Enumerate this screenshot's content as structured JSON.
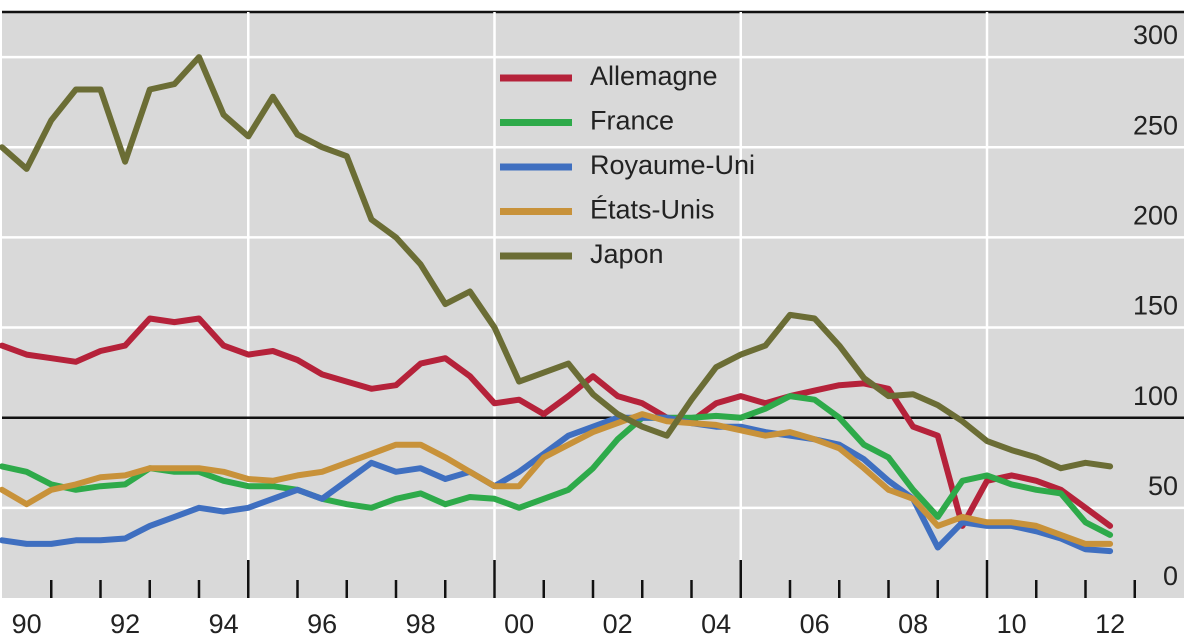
{
  "chart_data": {
    "type": "line",
    "x": [
      1990.0,
      1990.5,
      1991.0,
      1991.5,
      1992.0,
      1992.5,
      1993.0,
      1993.5,
      1994.0,
      1994.5,
      1995.0,
      1995.5,
      1996.0,
      1996.5,
      1997.0,
      1997.5,
      1998.0,
      1998.5,
      1999.0,
      1999.5,
      2000.0,
      2000.5,
      2001.0,
      2001.5,
      2002.0,
      2002.5,
      2003.0,
      2003.5,
      2004.0,
      2004.5,
      2005.0,
      2005.5,
      2006.0,
      2006.5,
      2007.0,
      2007.5,
      2008.0,
      2008.5,
      2009.0,
      2009.5,
      2010.0,
      2010.5,
      2011.0,
      2011.5,
      2012.0,
      2012.5
    ],
    "series": [
      {
        "name": "Allemagne",
        "color": "#b5223a",
        "values": [
          140,
          135,
          133,
          131,
          137,
          140,
          155,
          153,
          155,
          140,
          135,
          137,
          132,
          124,
          120,
          116,
          118,
          130,
          133,
          123,
          108,
          110,
          102,
          112,
          123,
          112,
          108,
          100,
          98,
          108,
          112,
          108,
          112,
          115,
          118,
          119,
          116,
          95,
          90,
          40,
          65,
          68,
          65,
          60,
          50,
          40
        ]
      },
      {
        "name": "France",
        "color": "#2eaa4a",
        "values": [
          73,
          70,
          63,
          60,
          62,
          63,
          72,
          70,
          70,
          65,
          62,
          62,
          60,
          55,
          52,
          50,
          55,
          58,
          52,
          56,
          55,
          50,
          55,
          60,
          72,
          88,
          100,
          100,
          100,
          101,
          100,
          105,
          112,
          110,
          100,
          85,
          78,
          60,
          45,
          65,
          68,
          63,
          60,
          58,
          42,
          35
        ]
      },
      {
        "name": "Royaume-Uni",
        "color": "#3f6fc0",
        "values": [
          32,
          30,
          30,
          32,
          32,
          33,
          40,
          45,
          50,
          48,
          50,
          55,
          60,
          55,
          65,
          75,
          70,
          72,
          66,
          70,
          62,
          70,
          80,
          90,
          95,
          100,
          100,
          100,
          97,
          95,
          95,
          92,
          90,
          88,
          85,
          77,
          65,
          55,
          28,
          42,
          40,
          40,
          37,
          33,
          27,
          26
        ]
      },
      {
        "name": "États-Unis",
        "color": "#c8923a",
        "values": [
          60,
          52,
          60,
          63,
          67,
          68,
          72,
          72,
          72,
          70,
          66,
          65,
          68,
          70,
          75,
          80,
          85,
          85,
          78,
          70,
          62,
          62,
          78,
          85,
          92,
          97,
          102,
          98,
          97,
          96,
          93,
          90,
          92,
          88,
          83,
          72,
          60,
          55,
          40,
          45,
          42,
          42,
          40,
          35,
          30,
          30
        ]
      },
      {
        "name": "Japon",
        "color": "#6b6d35",
        "values": [
          250,
          238,
          265,
          282,
          282,
          242,
          282,
          285,
          300,
          268,
          256,
          278,
          257,
          250,
          245,
          210,
          200,
          185,
          163,
          170,
          150,
          120,
          125,
          130,
          113,
          102,
          95,
          90,
          110,
          128,
          135,
          140,
          157,
          155,
          140,
          122,
          112,
          113,
          107,
          98,
          87,
          82,
          78,
          72,
          75,
          73
        ]
      }
    ],
    "xlim": [
      1990,
      2014
    ],
    "ylim": [
      0,
      325
    ],
    "yticks": [
      0,
      50,
      100,
      150,
      200,
      250,
      300
    ],
    "reference_line": 100,
    "major_xticks": [
      1995,
      2000,
      2005,
      2010
    ],
    "minor_xticks": [
      1991,
      1992,
      1993,
      1994,
      1996,
      1997,
      1998,
      1999,
      2001,
      2002,
      2003,
      2004,
      2006,
      2007,
      2008,
      2009,
      2011,
      2012,
      2013
    ],
    "xtick_labels": [
      {
        "value": 1990.5,
        "label": "90"
      },
      {
        "value": 1992.5,
        "label": "92"
      },
      {
        "value": 1994.5,
        "label": "94"
      },
      {
        "value": 1996.5,
        "label": "96"
      },
      {
        "value": 1998.5,
        "label": "98"
      },
      {
        "value": 2000.5,
        "label": "00"
      },
      {
        "value": 2002.5,
        "label": "02"
      },
      {
        "value": 2004.5,
        "label": "04"
      },
      {
        "value": 2006.5,
        "label": "06"
      },
      {
        "value": 2008.5,
        "label": "08"
      },
      {
        "value": 2010.5,
        "label": "10"
      },
      {
        "value": 2012.5,
        "label": "12"
      }
    ],
    "grid": true,
    "legend": "top"
  }
}
